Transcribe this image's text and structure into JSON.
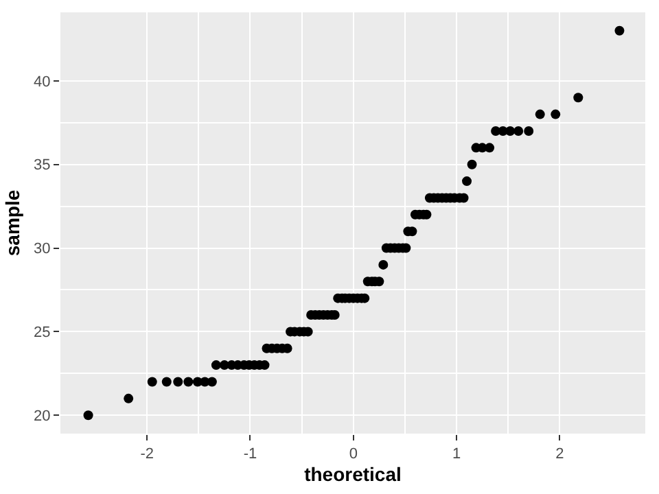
{
  "chart_data": {
    "type": "scatter",
    "xlabel": "theoretical",
    "ylabel": "sample",
    "x": [
      -2.57,
      -2.18,
      -1.95,
      -1.81,
      -1.7,
      -1.6,
      -1.51,
      -1.44,
      -1.37,
      -1.33,
      -1.25,
      -1.18,
      -1.12,
      -1.06,
      -1.01,
      -0.96,
      -0.91,
      -0.86,
      -0.84,
      -0.79,
      -0.74,
      -0.69,
      -0.64,
      -0.61,
      -0.57,
      -0.52,
      -0.48,
      -0.44,
      -0.41,
      -0.37,
      -0.33,
      -0.29,
      -0.25,
      -0.21,
      -0.18,
      -0.15,
      -0.11,
      -0.08,
      -0.04,
      0,
      0.04,
      0.08,
      0.11,
      0.14,
      0.18,
      0.21,
      0.25,
      0.29,
      0.32,
      0.36,
      0.4,
      0.44,
      0.48,
      0.51,
      0.53,
      0.57,
      0.6,
      0.64,
      0.68,
      0.71,
      0.74,
      0.78,
      0.82,
      0.86,
      0.9,
      0.94,
      0.98,
      1.03,
      1.07,
      1.1,
      1.15,
      1.19,
      1.25,
      1.32,
      1.38,
      1.45,
      1.52,
      1.6,
      1.7,
      1.81,
      1.96,
      2.18,
      2.58
    ],
    "values": [
      20,
      21,
      22,
      22,
      22,
      22,
      22,
      22,
      22,
      23,
      23,
      23,
      23,
      23,
      23,
      23,
      23,
      23,
      24,
      24,
      24,
      24,
      24,
      25,
      25,
      25,
      25,
      25,
      26,
      26,
      26,
      26,
      26,
      26,
      26,
      27,
      27,
      27,
      27,
      27,
      27,
      27,
      27,
      28,
      28,
      28,
      28,
      29,
      30,
      30,
      30,
      30,
      30,
      30,
      31,
      31,
      32,
      32,
      32,
      32,
      33,
      33,
      33,
      33,
      33,
      33,
      33,
      33,
      33,
      34,
      35,
      36,
      36,
      36,
      37,
      37,
      37,
      37,
      37,
      38,
      38,
      39,
      43
    ],
    "color": "#000000",
    "marker": "circle",
    "grid": true,
    "xlim": [
      -2.84,
      2.83
    ],
    "ylim": [
      18.9,
      44.1
    ],
    "xticks": [
      {
        "value": -2,
        "label": "-2"
      },
      {
        "value": -1,
        "label": "-1"
      },
      0,
      1,
      2
    ],
    "yticks": [
      20,
      25,
      30,
      35,
      40
    ]
  }
}
